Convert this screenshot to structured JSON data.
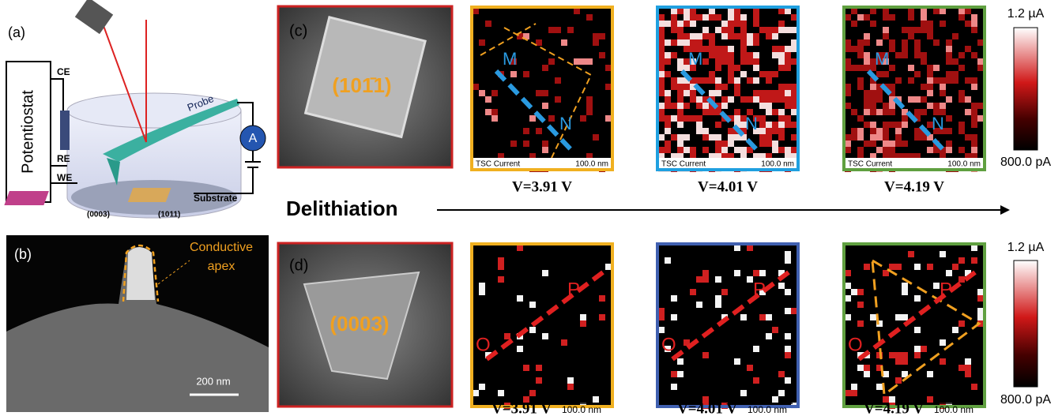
{
  "panel_a": {
    "label": "(a)",
    "potentiostat": "Potentiostat",
    "electrodes": [
      "CE",
      "RE",
      "WE"
    ],
    "probe": "Probe",
    "ammeter": "A",
    "substrate": "Substrate",
    "facets": [
      "(0003)",
      "(1011)"
    ]
  },
  "panel_b": {
    "label": "(b)",
    "annotation": [
      "Conductive",
      "apex"
    ],
    "scale_bar": "200 nm"
  },
  "panel_c": {
    "label": "(c)",
    "facet": "(101̄1)",
    "line_ends": [
      "M",
      "N"
    ],
    "maps": [
      {
        "channel": "TSC Current",
        "scale_bar": "100.0 nm",
        "voltage": "V=3.91 V"
      },
      {
        "channel": "TSC Current",
        "scale_bar": "100.0 nm",
        "voltage": "V=4.01 V"
      },
      {
        "channel": "TSC Current",
        "scale_bar": "100.0 nm",
        "voltage": "V=4.19 V"
      }
    ],
    "colorbar": [
      "1.2 µA",
      "800.0 pA"
    ]
  },
  "process": "Delithiation",
  "panel_d": {
    "label": "(d)",
    "facet": "(0003)",
    "line_ends": [
      "O",
      "P"
    ],
    "maps": [
      {
        "scale_bar": "100.0 nm",
        "voltage": "V=3.91 V"
      },
      {
        "scale_bar": "100.0 nm",
        "voltage": "V=4.01 V"
      },
      {
        "scale_bar": "100.0 nm",
        "voltage": "V=4.19 V"
      }
    ],
    "colorbar": [
      "1.2 µA",
      "800.0 pA"
    ]
  }
}
